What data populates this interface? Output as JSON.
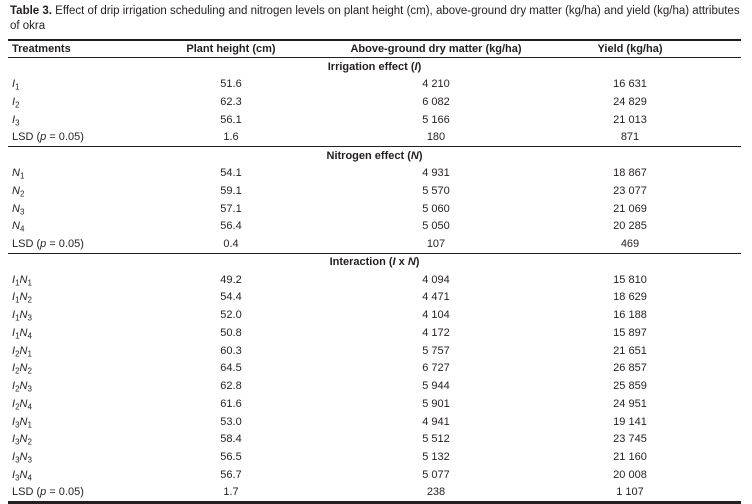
{
  "page": {
    "background": "#ffffff",
    "text_color": "#231f20",
    "rule_color": "#231f20"
  },
  "title": {
    "label": "Table 3.",
    "text": "Effect of drip irrigation scheduling and nitrogen levels on plant height (cm), above-ground dry matter (kg/ha) and yield (kg/ha) attributes of okra"
  },
  "table": {
    "columns": [
      "Treatments",
      "Plant height (cm)",
      "Above-ground dry matter (kg/ha)",
      "Yield (kg/ha)"
    ],
    "sections": [
      {
        "header_parts": [
          [
            "t",
            "Irrigation effect ("
          ],
          [
            "i",
            "I"
          ],
          [
            "t",
            ")"
          ]
        ],
        "rows": [
          {
            "label_parts": [
              [
                "i",
                "I"
              ],
              [
                "s",
                "1"
              ]
            ],
            "values": [
              "51.6",
              "4 210",
              "16 631"
            ]
          },
          {
            "label_parts": [
              [
                "i",
                "I"
              ],
              [
                "s",
                "2"
              ]
            ],
            "values": [
              "62.3",
              "6 082",
              "24 829"
            ]
          },
          {
            "label_parts": [
              [
                "i",
                "I"
              ],
              [
                "s",
                "3"
              ]
            ],
            "values": [
              "56.1",
              "5 166",
              "21 013"
            ]
          },
          {
            "label_parts": [
              [
                "t",
                "LSD ("
              ],
              [
                "i",
                "p"
              ],
              [
                "t",
                " = 0.05)"
              ]
            ],
            "lsd": true,
            "values": [
              "1.6",
              "180",
              "871"
            ]
          }
        ]
      },
      {
        "header_parts": [
          [
            "t",
            "Nitrogen effect ("
          ],
          [
            "i",
            "N"
          ],
          [
            "t",
            ")"
          ]
        ],
        "rows": [
          {
            "label_parts": [
              [
                "i",
                "N"
              ],
              [
                "s",
                "1"
              ]
            ],
            "values": [
              "54.1",
              "4 931",
              "18 867"
            ]
          },
          {
            "label_parts": [
              [
                "i",
                "N"
              ],
              [
                "s",
                "2"
              ]
            ],
            "values": [
              "59.1",
              "5 570",
              "23 077"
            ]
          },
          {
            "label_parts": [
              [
                "i",
                "N"
              ],
              [
                "s",
                "3"
              ]
            ],
            "values": [
              "57.1",
              "5 060",
              "21 069"
            ]
          },
          {
            "label_parts": [
              [
                "i",
                "N"
              ],
              [
                "s",
                "4"
              ]
            ],
            "values": [
              "56.4",
              "5 050",
              "20 285"
            ]
          },
          {
            "label_parts": [
              [
                "t",
                "LSD ("
              ],
              [
                "i",
                "p"
              ],
              [
                "t",
                " = 0.05)"
              ]
            ],
            "lsd": true,
            "values": [
              "0.4",
              "107",
              "469"
            ]
          }
        ]
      },
      {
        "header_parts": [
          [
            "t",
            "Interaction ("
          ],
          [
            "i",
            "I"
          ],
          [
            "t",
            " x "
          ],
          [
            "i",
            "N"
          ],
          [
            "t",
            ")"
          ]
        ],
        "rows": [
          {
            "label_parts": [
              [
                "i",
                "I"
              ],
              [
                "s",
                "1"
              ],
              [
                "i",
                "N"
              ],
              [
                "s",
                "1"
              ]
            ],
            "values": [
              "49.2",
              "4 094",
              "15 810"
            ]
          },
          {
            "label_parts": [
              [
                "i",
                "I"
              ],
              [
                "s",
                "1"
              ],
              [
                "i",
                "N"
              ],
              [
                "s",
                "2"
              ]
            ],
            "values": [
              "54.4",
              "4 471",
              "18 629"
            ]
          },
          {
            "label_parts": [
              [
                "i",
                "I"
              ],
              [
                "s",
                "1"
              ],
              [
                "i",
                "N"
              ],
              [
                "s",
                "3"
              ]
            ],
            "values": [
              "52.0",
              "4 104",
              "16 188"
            ]
          },
          {
            "label_parts": [
              [
                "i",
                "I"
              ],
              [
                "s",
                "1"
              ],
              [
                "i",
                "N"
              ],
              [
                "s",
                "4"
              ]
            ],
            "values": [
              "50.8",
              "4 172",
              "15 897"
            ]
          },
          {
            "label_parts": [
              [
                "i",
                "I"
              ],
              [
                "s",
                "2"
              ],
              [
                "i",
                "N"
              ],
              [
                "s",
                "1"
              ]
            ],
            "values": [
              "60.3",
              "5 757",
              "21 651"
            ]
          },
          {
            "label_parts": [
              [
                "i",
                "I"
              ],
              [
                "s",
                "2"
              ],
              [
                "i",
                "N"
              ],
              [
                "s",
                "2"
              ]
            ],
            "values": [
              "64.5",
              "6 727",
              "26 857"
            ]
          },
          {
            "label_parts": [
              [
                "i",
                "I"
              ],
              [
                "s",
                "2"
              ],
              [
                "i",
                "N"
              ],
              [
                "s",
                "3"
              ]
            ],
            "values": [
              "62.8",
              "5 944",
              "25 859"
            ]
          },
          {
            "label_parts": [
              [
                "i",
                "I"
              ],
              [
                "s",
                "2"
              ],
              [
                "i",
                "N"
              ],
              [
                "s",
                "4"
              ]
            ],
            "values": [
              "61.6",
              "5 901",
              "24 951"
            ]
          },
          {
            "label_parts": [
              [
                "i",
                "I"
              ],
              [
                "s",
                "3"
              ],
              [
                "i",
                "N"
              ],
              [
                "s",
                "1"
              ]
            ],
            "values": [
              "53.0",
              "4 941",
              "19 141"
            ]
          },
          {
            "label_parts": [
              [
                "i",
                "I"
              ],
              [
                "s",
                "3"
              ],
              [
                "i",
                "N"
              ],
              [
                "s",
                "2"
              ]
            ],
            "values": [
              "58.4",
              "5 512",
              "23 745"
            ]
          },
          {
            "label_parts": [
              [
                "i",
                "I"
              ],
              [
                "s",
                "3"
              ],
              [
                "i",
                "N"
              ],
              [
                "s",
                "3"
              ]
            ],
            "values": [
              "56.5",
              "5 132",
              "21 160"
            ]
          },
          {
            "label_parts": [
              [
                "i",
                "I"
              ],
              [
                "s",
                "3"
              ],
              [
                "i",
                "N"
              ],
              [
                "s",
                "4"
              ]
            ],
            "values": [
              "56.7",
              "5 077",
              "20 008"
            ]
          },
          {
            "label_parts": [
              [
                "t",
                "LSD ("
              ],
              [
                "i",
                "p"
              ],
              [
                "t",
                " = 0.05)"
              ]
            ],
            "lsd": true,
            "values": [
              "1.7",
              "238",
              "1 107"
            ]
          }
        ]
      }
    ]
  }
}
